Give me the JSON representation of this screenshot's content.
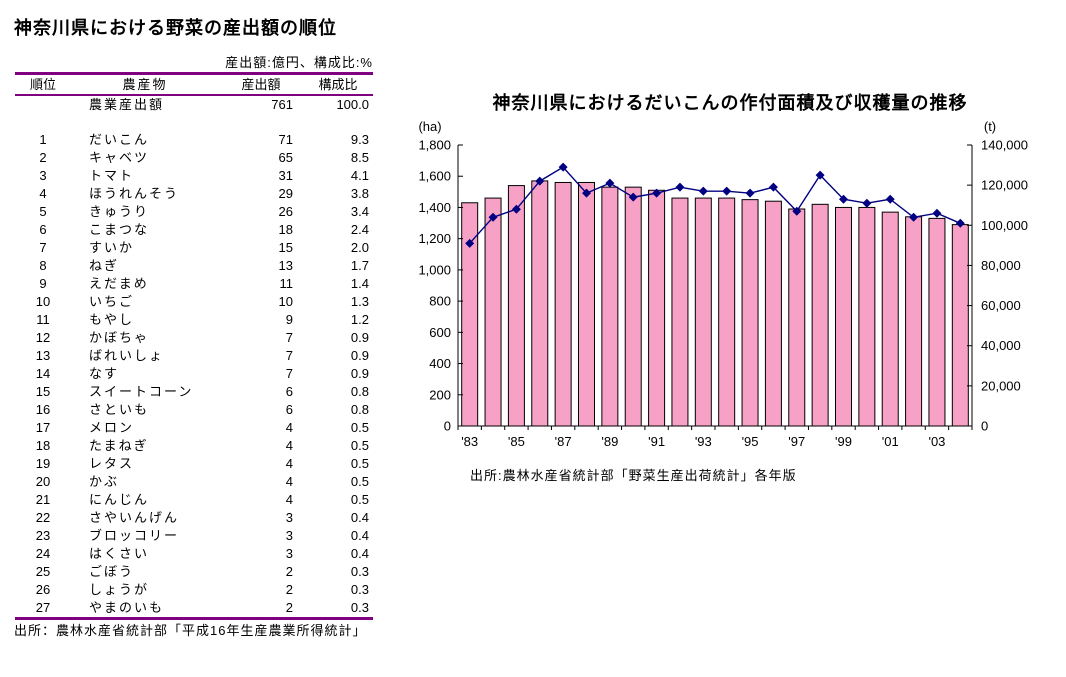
{
  "page": {
    "title": "神奈川県における野菜の産出額の順位",
    "table_note": "産出額:億円、構成比:%",
    "table_source": "出所：農林水産省統計部「平成16年生産農業所得統計」"
  },
  "table": {
    "headers": {
      "rank": "順位",
      "name": "農産物",
      "value": "産出額",
      "share": "構成比"
    },
    "total_row": {
      "rank": "",
      "name": "農業産出額",
      "value": "761",
      "share": "100.0"
    },
    "rows": [
      {
        "rank": "1",
        "name": "だいこん",
        "value": "71",
        "share": "9.3"
      },
      {
        "rank": "2",
        "name": "キャベツ",
        "value": "65",
        "share": "8.5"
      },
      {
        "rank": "3",
        "name": "トマト",
        "value": "31",
        "share": "4.1"
      },
      {
        "rank": "4",
        "name": "ほうれんそう",
        "value": "29",
        "share": "3.8"
      },
      {
        "rank": "5",
        "name": "きゅうり",
        "value": "26",
        "share": "3.4"
      },
      {
        "rank": "6",
        "name": "こまつな",
        "value": "18",
        "share": "2.4"
      },
      {
        "rank": "7",
        "name": "すいか",
        "value": "15",
        "share": "2.0"
      },
      {
        "rank": "8",
        "name": "ねぎ",
        "value": "13",
        "share": "1.7"
      },
      {
        "rank": "9",
        "name": "えだまめ",
        "value": "11",
        "share": "1.4"
      },
      {
        "rank": "10",
        "name": "いちご",
        "value": "10",
        "share": "1.3"
      },
      {
        "rank": "11",
        "name": "もやし",
        "value": "9",
        "share": "1.2"
      },
      {
        "rank": "12",
        "name": "かぼちゃ",
        "value": "7",
        "share": "0.9"
      },
      {
        "rank": "13",
        "name": "ばれいしょ",
        "value": "7",
        "share": "0.9"
      },
      {
        "rank": "14",
        "name": "なす",
        "value": "7",
        "share": "0.9"
      },
      {
        "rank": "15",
        "name": "スイートコーン",
        "value": "6",
        "share": "0.8"
      },
      {
        "rank": "16",
        "name": "さといも",
        "value": "6",
        "share": "0.8"
      },
      {
        "rank": "17",
        "name": "メロン",
        "value": "4",
        "share": "0.5"
      },
      {
        "rank": "18",
        "name": "たまねぎ",
        "value": "4",
        "share": "0.5"
      },
      {
        "rank": "19",
        "name": "レタス",
        "value": "4",
        "share": "0.5"
      },
      {
        "rank": "20",
        "name": "かぶ",
        "value": "4",
        "share": "0.5"
      },
      {
        "rank": "21",
        "name": "にんじん",
        "value": "4",
        "share": "0.5"
      },
      {
        "rank": "22",
        "name": "さやいんげん",
        "value": "3",
        "share": "0.4"
      },
      {
        "rank": "23",
        "name": "ブロッコリー",
        "value": "3",
        "share": "0.4"
      },
      {
        "rank": "24",
        "name": "はくさい",
        "value": "3",
        "share": "0.4"
      },
      {
        "rank": "25",
        "name": "ごぼう",
        "value": "2",
        "share": "0.3"
      },
      {
        "rank": "26",
        "name": "しょうが",
        "value": "2",
        "share": "0.3"
      },
      {
        "rank": "27",
        "name": "やまのいも",
        "value": "2",
        "share": "0.3"
      }
    ]
  },
  "chart": {
    "title": "神奈川県におけるだいこんの作付面積及び収穫量の推移",
    "source": "出所:農林水産省統計部「野菜生産出荷統計」各年版"
  },
  "chart_data": {
    "type": "bar",
    "subtype": "bar+line combo, dual axis",
    "title": "神奈川県におけるだいこんの作付面積及び収穫量の推移",
    "x": [
      1983,
      1984,
      1985,
      1986,
      1987,
      1988,
      1989,
      1990,
      1991,
      1992,
      1993,
      1994,
      1995,
      1996,
      1997,
      1998,
      1999,
      2000,
      2001,
      2002,
      2003,
      2004
    ],
    "x_tick_labels": [
      "'83",
      "'85",
      "'87",
      "'89",
      "'91",
      "'93",
      "'95",
      "'97",
      "'99",
      "'01",
      "'03"
    ],
    "x_tick_positions": [
      0,
      2,
      4,
      6,
      8,
      10,
      12,
      14,
      16,
      18,
      20
    ],
    "series": [
      {
        "name": "作付面積",
        "type": "bar",
        "axis": "left",
        "unit": "ha",
        "values": [
          1430,
          1460,
          1540,
          1570,
          1560,
          1560,
          1530,
          1530,
          1510,
          1460,
          1460,
          1460,
          1450,
          1440,
          1390,
          1420,
          1400,
          1400,
          1370,
          1340,
          1330,
          1290
        ]
      },
      {
        "name": "収穫量",
        "type": "line",
        "axis": "right",
        "unit": "t",
        "values": [
          91000,
          104000,
          108000,
          122000,
          129000,
          116000,
          121000,
          114000,
          116000,
          119000,
          117000,
          117000,
          116000,
          119000,
          107000,
          125000,
          113000,
          111000,
          113000,
          104000,
          106000,
          101000
        ]
      }
    ],
    "left_axis": {
      "unit": "(ha)",
      "min": 0,
      "max": 1800,
      "step": 200
    },
    "right_axis": {
      "unit": "(t)",
      "min": 0,
      "max": 140000,
      "step": 20000
    },
    "legend": "none",
    "grid": false,
    "colors": {
      "bar_fill": "#F7A1C6",
      "bar_border": "#000000",
      "line": "#000080",
      "marker": "#000080",
      "table_rule": "#800080"
    }
  }
}
